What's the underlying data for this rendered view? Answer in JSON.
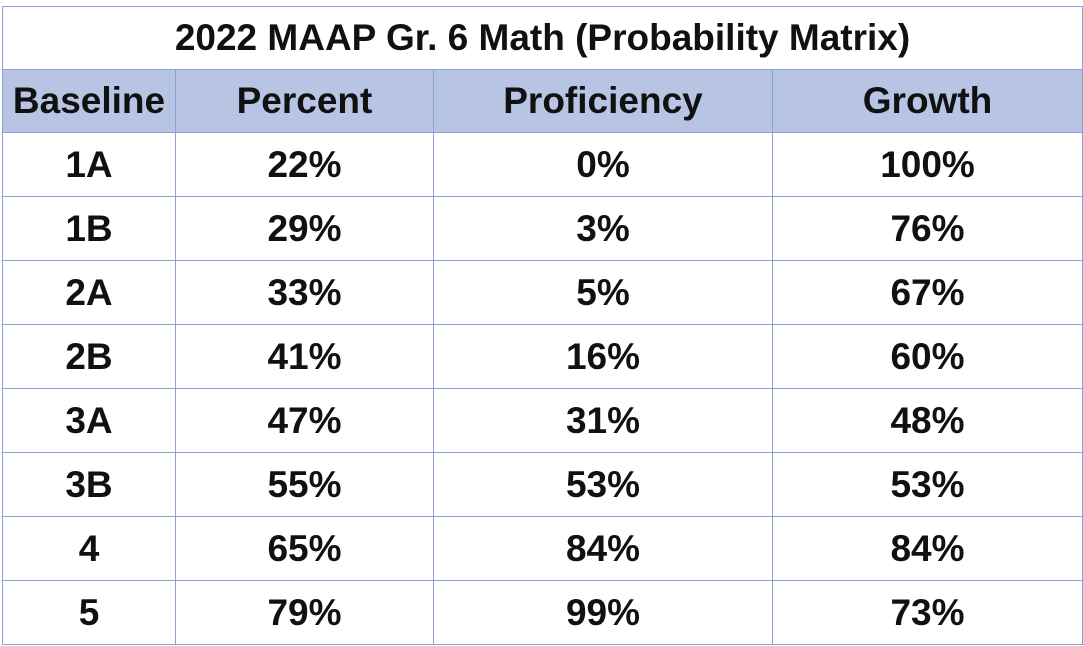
{
  "table": {
    "title": "2022 MAAP Gr. 6 Math (Probability Matrix)",
    "headers": [
      "Baseline",
      "Percent",
      "Proficiency",
      "Growth"
    ],
    "rows": [
      [
        "1A",
        "22%",
        "0%",
        "100%"
      ],
      [
        "1B",
        "29%",
        "3%",
        "76%"
      ],
      [
        "2A",
        "33%",
        "5%",
        "67%"
      ],
      [
        "2B",
        "41%",
        "16%",
        "60%"
      ],
      [
        "3A",
        "47%",
        "31%",
        "48%"
      ],
      [
        "3B",
        "55%",
        "53%",
        "53%"
      ],
      [
        "4",
        "65%",
        "84%",
        "84%"
      ],
      [
        "5",
        "79%",
        "99%",
        "73%"
      ]
    ]
  },
  "colors": {
    "header_fill": "#b8c4e4",
    "border": "#8ea0d8",
    "text": "#111111"
  }
}
